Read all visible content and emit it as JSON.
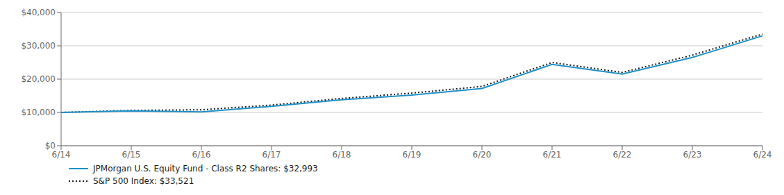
{
  "chart_data": {
    "type": "line",
    "categories": [
      "6/14",
      "6/15",
      "6/16",
      "6/17",
      "6/18",
      "6/19",
      "6/20",
      "6/21",
      "6/22",
      "6/23",
      "6/24"
    ],
    "series": [
      {
        "name": "JPMorgan U.S. Equity Fund - Class R2 Shares: $32,993",
        "color": "#1E90C8",
        "line_style": "solid",
        "values": [
          10000,
          10450,
          10150,
          11800,
          13800,
          15200,
          17200,
          24400,
          21500,
          26500,
          32993
        ]
      },
      {
        "name": "S&P 500 Index: $33,521",
        "color": "#1a1a1a",
        "line_style": "dotted",
        "values": [
          10000,
          10600,
          10800,
          12200,
          14200,
          15800,
          17800,
          25000,
          22000,
          27200,
          33521
        ]
      }
    ],
    "ylim": [
      0,
      40000
    ],
    "yticks": [
      {
        "value": 0,
        "label": "$0"
      },
      {
        "value": 10000,
        "label": "$10,000"
      },
      {
        "value": 20000,
        "label": "$20,000"
      },
      {
        "value": 30000,
        "label": "$30,000"
      },
      {
        "value": 40000,
        "label": "$40,000"
      }
    ],
    "grid": true
  }
}
